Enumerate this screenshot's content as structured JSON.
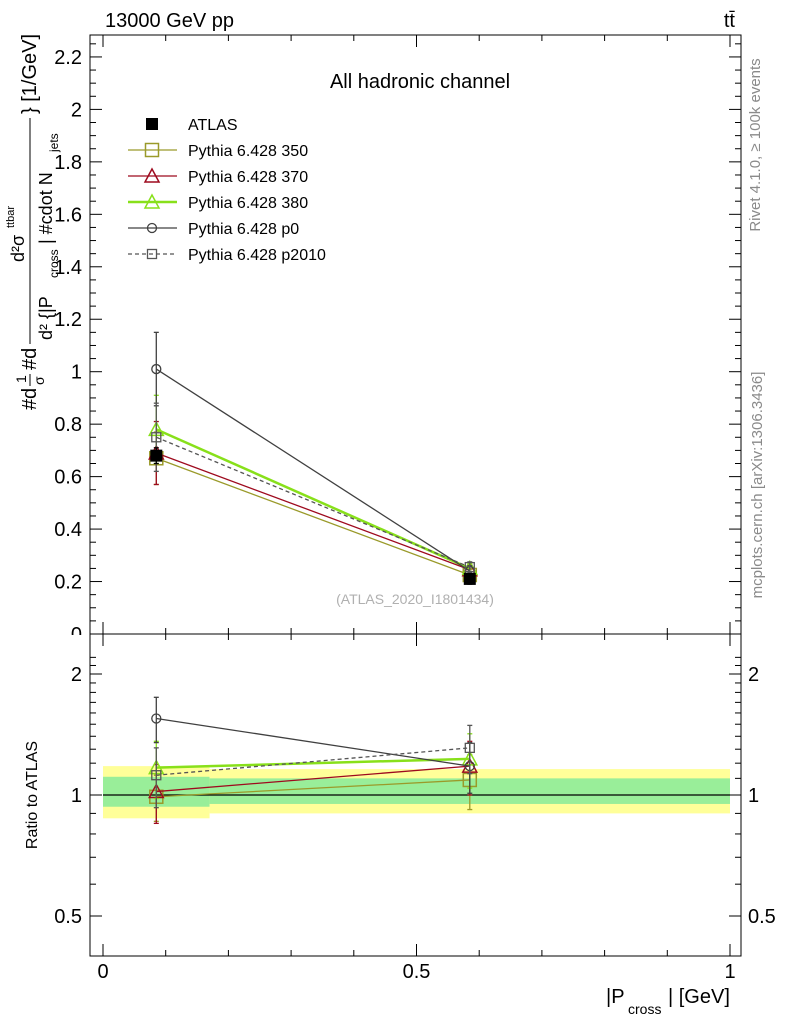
{
  "header": {
    "energy_label": "13000 GeV pp",
    "process_label": "tt̄"
  },
  "side_labels": {
    "rivet": "Rivet 4.1.0, ≥ 100k events",
    "mcplots": "mcplots.cern.ch [arXiv:1306.3436]"
  },
  "chart_data": [
    {
      "type": "line",
      "title": "All hadronic channel",
      "watermark": "(ATLAS_2020_I1801434)",
      "xlabel": "|P_cross| [GeV]",
      "ylabel": "#d1/#sigma #d^2 #sigma^tt / d^2 {|P_cross| #cdot N_jets} [1/GeV]",
      "ylabel_parts": {
        "sym_hash": "#",
        "sym_d": "d",
        "frac_1": "1",
        "frac_sigma": "σ",
        "sym_hash_d": "#d",
        "inner_num": "d²σ",
        "inner_sup": "ttbar",
        "inner_den_pre": "d² {|P",
        "inner_den_sub": "cross",
        "inner_den_mid": "| #cdot N",
        "inner_den_sub2": "jets",
        "suffix": "} [1/GeV]"
      },
      "xlim": [
        0,
        1
      ],
      "ylim": [
        0,
        2.3
      ],
      "yticks": [
        0.2,
        0.4,
        0.6,
        0.8,
        1,
        1.2,
        1.4,
        1.6,
        1.8,
        2,
        2.2
      ],
      "ytick_labels": [
        "0.2",
        "0.4",
        "0.6",
        "0.8",
        "1",
        "1.2",
        "1.4",
        "1.6",
        "1.8",
        "2",
        "2.2"
      ],
      "ytick_zero_label": "0",
      "x": [
        0.085,
        0.585
      ],
      "x_bins": [
        [
          0,
          0.17
        ],
        [
          0.17,
          1
        ]
      ],
      "series": [
        {
          "name": "ATLAS",
          "values": [
            0.68,
            0.21
          ],
          "errors": [
            0.03,
            0.02
          ],
          "color": "#000000",
          "marker": "filled-square",
          "dash": "none"
        },
        {
          "name": "Pythia 6.428 350",
          "values": [
            0.67,
            0.225
          ],
          "errors": [
            0.1,
            0.02
          ],
          "color": "#9a9a2a",
          "marker": "open-square",
          "dash": "none"
        },
        {
          "name": "Pythia 6.428 370",
          "values": [
            0.69,
            0.245
          ],
          "errors": [
            0.12,
            0.02
          ],
          "color": "#9e0a1e",
          "marker": "open-triangle",
          "dash": "none"
        },
        {
          "name": "Pythia 6.428 380",
          "values": [
            0.78,
            0.25
          ],
          "errors": [
            0.13,
            0.02
          ],
          "color": "#88e01a",
          "marker": "open-triangle",
          "dash": "none"
        },
        {
          "name": "Pythia 6.428 p0",
          "values": [
            1.01,
            0.24
          ],
          "errors": [
            0.14,
            0.02
          ],
          "color": "#404040",
          "marker": "open-circle",
          "dash": "none"
        },
        {
          "name": "Pythia 6.428 p2010",
          "values": [
            0.75,
            0.255
          ],
          "errors": [
            0.13,
            0.02
          ],
          "color": "#555555",
          "marker": "open-square-small",
          "dash": "4,3"
        }
      ]
    },
    {
      "type": "line",
      "title": "Ratio to ATLAS",
      "ylabel": "Ratio to ATLAS",
      "xlabel_main": "|P",
      "xlabel_sub": "cross",
      "xlabel_tail": "| [GeV]",
      "xlim": [
        0,
        1
      ],
      "ylim": [
        0.4,
        2.4
      ],
      "yscale": "log",
      "yticks": [
        0.5,
        1,
        2
      ],
      "ytick_labels": [
        "0.5",
        "1",
        "2"
      ],
      "xticks": [
        0,
        0.5,
        1
      ],
      "xtick_labels": [
        "0",
        "0.5",
        "1"
      ],
      "bands": [
        {
          "x0": 0,
          "x1": 0.17,
          "yellow": [
            0.875,
            1.18
          ],
          "green": [
            0.935,
            1.11
          ]
        },
        {
          "x0": 0.17,
          "x1": 1,
          "yellow": [
            0.9,
            1.16
          ],
          "green": [
            0.95,
            1.1
          ]
        }
      ],
      "series": [
        {
          "name": "Pythia 6.428 350",
          "values": [
            0.99,
            1.09
          ],
          "errors": [
            0.13,
            0.17
          ],
          "color": "#9a9a2a"
        },
        {
          "name": "Pythia 6.428 370",
          "values": [
            1.02,
            1.18
          ],
          "errors": [
            0.17,
            0.18
          ],
          "color": "#9e0a1e"
        },
        {
          "name": "Pythia 6.428 380",
          "values": [
            1.17,
            1.23
          ],
          "errors": [
            0.19,
            0.19
          ],
          "color": "#88e01a"
        },
        {
          "name": "Pythia 6.428 p0",
          "values": [
            1.55,
            1.18
          ],
          "errors": [
            0.2,
            0.17
          ],
          "color": "#404040"
        },
        {
          "name": "Pythia 6.428 p2010",
          "values": [
            1.12,
            1.31
          ],
          "errors": [
            0.19,
            0.18
          ],
          "color": "#555555"
        }
      ]
    }
  ]
}
